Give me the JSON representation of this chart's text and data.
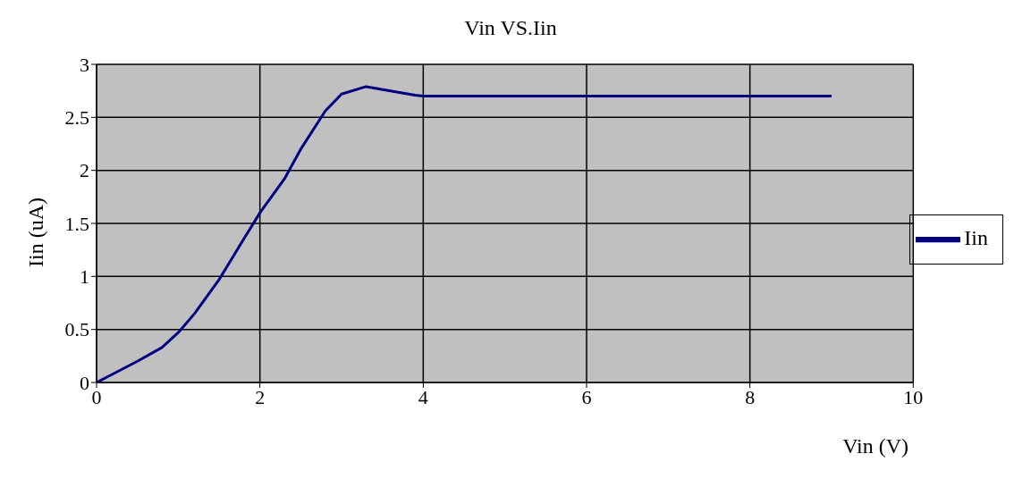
{
  "chart_data": {
    "type": "line",
    "title": "Vin VS.Iin",
    "xlabel": "Vin (V)",
    "ylabel": "Iin (uA)",
    "x": [
      0,
      0.2,
      0.5,
      0.8,
      1.0,
      1.2,
      1.5,
      1.8,
      2.0,
      2.3,
      2.5,
      2.8,
      3.0,
      3.3,
      3.6,
      3.9,
      4.0,
      9.0
    ],
    "series": [
      {
        "name": "Iin",
        "color": "#000080",
        "values": [
          0,
          0.08,
          0.2,
          0.33,
          0.47,
          0.65,
          0.97,
          1.35,
          1.6,
          1.92,
          2.2,
          2.56,
          2.72,
          2.79,
          2.75,
          2.71,
          2.7,
          2.7
        ]
      }
    ],
    "xlim": [
      0,
      10
    ],
    "xticks": [
      0,
      2,
      4,
      6,
      8,
      10
    ],
    "ylim": [
      0,
      3
    ],
    "yticks": [
      0,
      0.5,
      1,
      1.5,
      2,
      2.5,
      3
    ],
    "grid": true,
    "legend": "right",
    "marker": "none",
    "line_style": "solid"
  }
}
